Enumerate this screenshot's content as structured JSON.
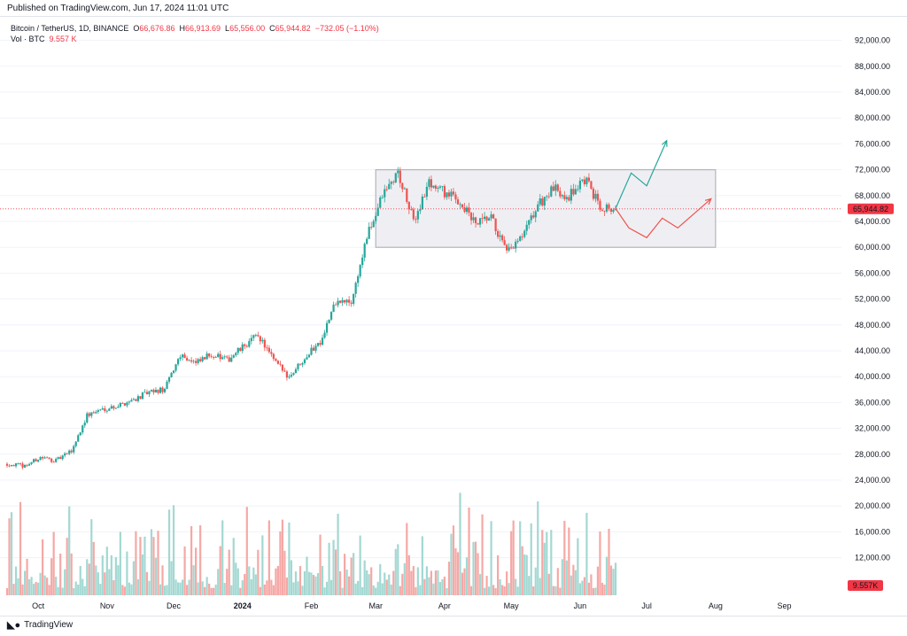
{
  "header": {
    "published": "Published on TradingView.com, Jun 17, 2024 11:01 UTC"
  },
  "legend": {
    "symbol": "Bitcoin / TetherUS, 1D, BINANCE",
    "o_label": "O",
    "o": "66,676.86",
    "h_label": "H",
    "h": "66,913.69",
    "l_label": "L",
    "l": "65,556.00",
    "c_label": "C",
    "c": "65,944.82",
    "change": "−732.05 (−1.10%)",
    "vol_label": "Vol · BTC",
    "vol_value": "9.557 K"
  },
  "footer": {
    "brand": "TradingView",
    "logo": "tv-logo-icon"
  },
  "colors": {
    "up": "#26a69a",
    "down": "#ef5350",
    "vol_up": "#a3d8d2",
    "vol_down": "#f5a8a5",
    "range_box": "#e8e8ee",
    "range_border": "#b2b5be",
    "price_line": "#f23645"
  },
  "chart_data": {
    "type": "candlestick",
    "symbol": "Bitcoin / TetherUS",
    "interval": "1D",
    "exchange": "BINANCE",
    "y_ticks": [
      12000,
      16000,
      20000,
      24000,
      28000,
      32000,
      36000,
      40000,
      44000,
      48000,
      52000,
      56000,
      60000,
      64000,
      68000,
      72000,
      76000,
      80000,
      84000,
      88000,
      92000
    ],
    "y_tick_labels": [
      "12,000.00",
      "16,000.00",
      "20,000.00",
      "24,000.00",
      "28,000.00",
      "32,000.00",
      "36,000.00",
      "40,000.00",
      "44,000.00",
      "48,000.00",
      "52,000.00",
      "56,000.00",
      "60,000.00",
      "64,000.00",
      "68,000.00",
      "72,000.00",
      "76,000.00",
      "80,000.00",
      "84,000.00",
      "88,000.00",
      "92,000.00"
    ],
    "x_labels": [
      {
        "label": "Oct",
        "date": "2023-10-01"
      },
      {
        "label": "Nov",
        "date": "2023-11-01"
      },
      {
        "label": "Dec",
        "date": "2023-12-01"
      },
      {
        "label": "2024",
        "date": "2024-01-01"
      },
      {
        "label": "Feb",
        "date": "2024-02-01"
      },
      {
        "label": "Mar",
        "date": "2024-03-01"
      },
      {
        "label": "Apr",
        "date": "2024-04-01"
      },
      {
        "label": "May",
        "date": "2024-05-01"
      },
      {
        "label": "Jun",
        "date": "2024-06-01"
      },
      {
        "label": "Jul",
        "date": "2024-07-01"
      },
      {
        "label": "Aug",
        "date": "2024-08-01"
      },
      {
        "label": "Sep",
        "date": "2024-09-01"
      }
    ],
    "start_date": "2023-09-17",
    "end_date": "2024-06-17",
    "close_path": [
      [
        "2023-09-17",
        26500
      ],
      [
        "2023-09-25",
        26200
      ],
      [
        "2023-10-02",
        27500
      ],
      [
        "2023-10-09",
        27000
      ],
      [
        "2023-10-16",
        28500
      ],
      [
        "2023-10-23",
        34000
      ],
      [
        "2023-10-30",
        35000
      ],
      [
        "2023-11-06",
        35500
      ],
      [
        "2023-11-13",
        36500
      ],
      [
        "2023-11-20",
        37500
      ],
      [
        "2023-11-27",
        38000
      ],
      [
        "2023-12-04",
        43500
      ],
      [
        "2023-12-11",
        42000
      ],
      [
        "2023-12-18",
        43500
      ],
      [
        "2023-12-25",
        42500
      ],
      [
        "2024-01-01",
        44500
      ],
      [
        "2024-01-08",
        46500
      ],
      [
        "2024-01-15",
        42500
      ],
      [
        "2024-01-22",
        40000
      ],
      [
        "2024-01-29",
        43000
      ],
      [
        "2024-02-05",
        45500
      ],
      [
        "2024-02-12",
        51500
      ],
      [
        "2024-02-19",
        51500
      ],
      [
        "2024-02-26",
        61500
      ],
      [
        "2024-03-04",
        68000
      ],
      [
        "2024-03-11",
        71500
      ],
      [
        "2024-03-18",
        64000
      ],
      [
        "2024-03-25",
        70000
      ],
      [
        "2024-04-01",
        68500
      ],
      [
        "2024-04-08",
        67000
      ],
      [
        "2024-04-15",
        63500
      ],
      [
        "2024-04-22",
        64500
      ],
      [
        "2024-04-29",
        59000
      ],
      [
        "2024-05-06",
        61500
      ],
      [
        "2024-05-13",
        66500
      ],
      [
        "2024-05-20",
        69000
      ],
      [
        "2024-05-27",
        68000
      ],
      [
        "2024-06-03",
        70500
      ],
      [
        "2024-06-10",
        66500
      ],
      [
        "2024-06-17",
        65944.82
      ]
    ],
    "last_price": 65944.82,
    "last_price_label": "65,944.82",
    "last_volume_label": "9.557K",
    "range_box": {
      "from_date": "2024-03-01",
      "to_date": "2024-08-01",
      "low": 60000,
      "high": 72000
    },
    "projection_bull": [
      [
        "2024-06-17",
        66000
      ],
      [
        "2024-06-24",
        71500
      ],
      [
        "2024-07-01",
        69500
      ],
      [
        "2024-07-10",
        76500
      ]
    ],
    "projection_bear": [
      [
        "2024-06-17",
        66000
      ],
      [
        "2024-06-23",
        63000
      ],
      [
        "2024-07-01",
        61500
      ],
      [
        "2024-07-08",
        64500
      ],
      [
        "2024-07-15",
        63000
      ],
      [
        "2024-07-30",
        67500
      ]
    ]
  }
}
